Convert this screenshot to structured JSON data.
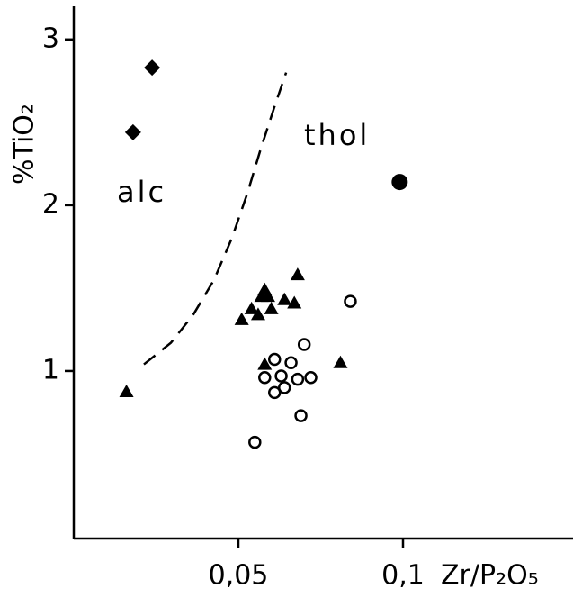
{
  "chart_data": {
    "type": "scatter",
    "x_label": "Zr/P₂O₅",
    "y_label": "%TiO₂",
    "xlim": [
      0,
      0.15
    ],
    "ylim": [
      0,
      3.2
    ],
    "xticks": [
      {
        "value": 0.05,
        "label": "0,05"
      },
      {
        "value": 0.1,
        "label": "0,1"
      }
    ],
    "yticks": [
      1,
      2,
      3
    ],
    "annotations": [
      "alc",
      "thol"
    ],
    "divider": {
      "x": [
        0.0213,
        0.0295,
        0.0363,
        0.0426,
        0.048,
        0.0527,
        0.0568,
        0.0609,
        0.0645
      ],
      "y": [
        1.04,
        1.17,
        1.34,
        1.55,
        1.8,
        2.07,
        2.34,
        2.59,
        2.8
      ]
    },
    "series": [
      {
        "marker": "diamond",
        "color": "#000000",
        "x": [
          0.0238,
          0.018
        ],
        "values": [
          2.83,
          2.44
        ]
      },
      {
        "marker": "circle",
        "color": "#000000",
        "x": [
          0.099
        ],
        "values": [
          2.14
        ]
      },
      {
        "marker": "triangle",
        "color": "#000000",
        "x": [
          0.016,
          0.051,
          0.054,
          0.056,
          0.057,
          0.058,
          0.06,
          0.059,
          0.064,
          0.067,
          0.068,
          0.081,
          0.058
        ],
        "values": [
          0.875,
          1.31,
          1.375,
          1.34,
          1.45,
          1.49,
          1.375,
          1.45,
          1.43,
          1.41,
          1.58,
          1.05,
          1.04
        ]
      },
      {
        "marker": "open-circle",
        "color": "#000000",
        "x": [
          0.084,
          0.07,
          0.061,
          0.066,
          0.058,
          0.063,
          0.068,
          0.072,
          0.061,
          0.064,
          0.069,
          0.055
        ],
        "values": [
          1.42,
          1.16,
          1.07,
          1.05,
          0.96,
          0.97,
          0.95,
          0.96,
          0.87,
          0.9,
          0.73,
          0.57
        ]
      }
    ]
  }
}
